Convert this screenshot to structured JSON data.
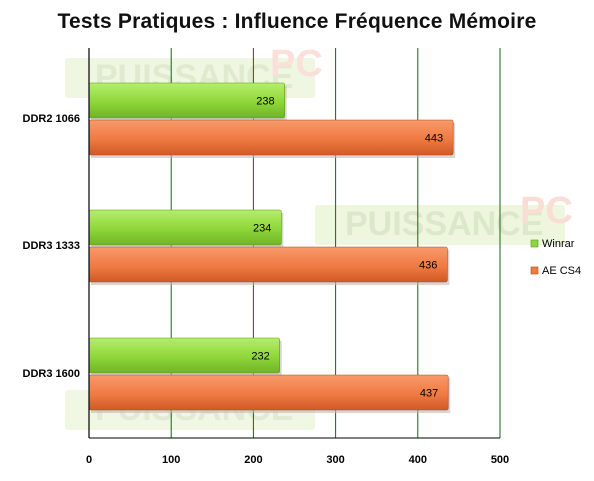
{
  "chart_data": {
    "type": "bar",
    "orientation": "horizontal",
    "title": "Tests Pratiques : Influence Fréquence Mémoire",
    "categories": [
      "DDR2 1066",
      "DDR3 1333",
      "DDR3 1600"
    ],
    "series": [
      {
        "name": "Winrar",
        "values": [
          238,
          234,
          232
        ],
        "color": "#8fd63a"
      },
      {
        "name": "AE CS4",
        "values": [
          443,
          436,
          437
        ],
        "color": "#f07a42"
      }
    ],
    "xlim": [
      0,
      500
    ],
    "xticks": [
      0,
      100,
      200,
      300,
      400,
      500
    ],
    "xlabel": "",
    "ylabel": "",
    "grid": "vertical",
    "legend_position": "right",
    "watermark": [
      "PUISSANCE",
      "PC"
    ]
  }
}
